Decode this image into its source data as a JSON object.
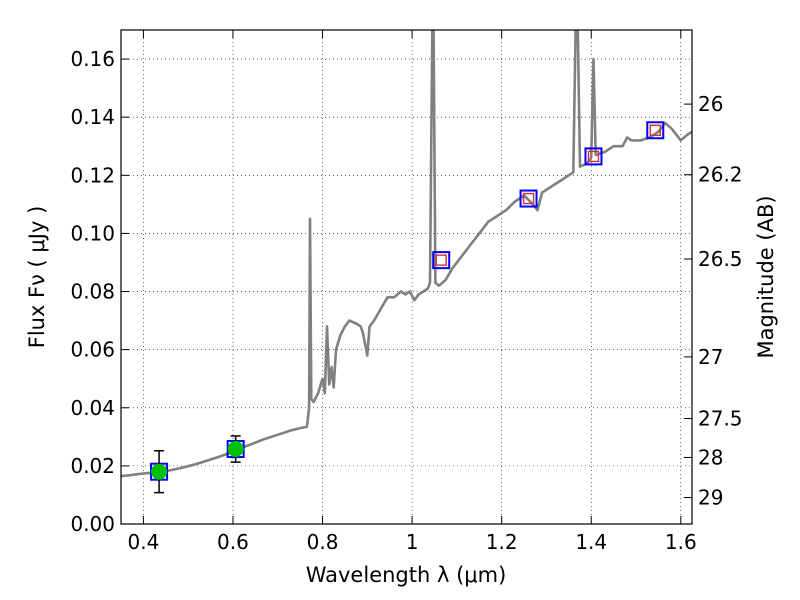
{
  "chart_data": {
    "type": "scatter",
    "xlabel": "Wavelength  λ (μm)",
    "ylabel": "Flux  Fν  ( μJy )",
    "y2label": "Magnitude (AB)",
    "xlim": [
      0.35,
      1.625
    ],
    "ylim": [
      0.0,
      0.17
    ],
    "grid": true,
    "grid_style": "dotted",
    "x_ticks": [
      0.4,
      0.6,
      0.8,
      1.0,
      1.2,
      1.4,
      1.6
    ],
    "x_tick_labels": [
      "0.4",
      "0.6",
      "0.8",
      "1",
      "1.2",
      "1.4",
      "1.6"
    ],
    "y_ticks": [
      0.0,
      0.02,
      0.04,
      0.06,
      0.08,
      0.1,
      0.12,
      0.14,
      0.16
    ],
    "y_tick_labels": [
      "0.00",
      "0.02",
      "0.04",
      "0.06",
      "0.08",
      "0.10",
      "0.12",
      "0.14",
      "0.16"
    ],
    "y2_ticks": [
      {
        "label": "26",
        "flux": 0.1445
      },
      {
        "label": "26.2",
        "flux": 0.1202
      },
      {
        "label": "26.5",
        "flux": 0.0912
      },
      {
        "label": "27",
        "flux": 0.0575
      },
      {
        "label": "27.5",
        "flux": 0.0363
      },
      {
        "label": "28",
        "flux": 0.0229
      },
      {
        "label": "29",
        "flux": 0.0091
      }
    ],
    "colors": {
      "spectrum": "#808080",
      "observed_fill": "#00c000",
      "model_box": "#0000ff",
      "model_inner": "#d03040",
      "errorbar": "#000000"
    },
    "series": [
      {
        "kind": "line",
        "points": [
          [
            0.35,
            0.0165
          ],
          [
            0.37,
            0.0168
          ],
          [
            0.39,
            0.0172
          ],
          [
            0.41,
            0.0175
          ],
          [
            0.43,
            0.0178
          ],
          [
            0.45,
            0.0182
          ],
          [
            0.47,
            0.0188
          ],
          [
            0.49,
            0.0195
          ],
          [
            0.51,
            0.0203
          ],
          [
            0.53,
            0.0212
          ],
          [
            0.55,
            0.0222
          ],
          [
            0.57,
            0.0232
          ],
          [
            0.59,
            0.0243
          ],
          [
            0.61,
            0.0256
          ],
          [
            0.63,
            0.0268
          ],
          [
            0.65,
            0.028
          ],
          [
            0.67,
            0.0292
          ],
          [
            0.69,
            0.0302
          ],
          [
            0.71,
            0.0312
          ],
          [
            0.73,
            0.0322
          ],
          [
            0.75,
            0.033
          ],
          [
            0.765,
            0.0335
          ],
          [
            0.77,
            0.04
          ],
          [
            0.772,
            0.105
          ],
          [
            0.775,
            0.043
          ],
          [
            0.78,
            0.042
          ],
          [
            0.79,
            0.045
          ],
          [
            0.8,
            0.05
          ],
          [
            0.805,
            0.045
          ],
          [
            0.81,
            0.068
          ],
          [
            0.815,
            0.048
          ],
          [
            0.82,
            0.054
          ],
          [
            0.825,
            0.047
          ],
          [
            0.83,
            0.06
          ],
          [
            0.84,
            0.065
          ],
          [
            0.85,
            0.068
          ],
          [
            0.86,
            0.07
          ],
          [
            0.875,
            0.069
          ],
          [
            0.885,
            0.068
          ],
          [
            0.89,
            0.066
          ],
          [
            0.9,
            0.058
          ],
          [
            0.905,
            0.068
          ],
          [
            0.915,
            0.07
          ],
          [
            0.93,
            0.074
          ],
          [
            0.945,
            0.078
          ],
          [
            0.96,
            0.078
          ],
          [
            0.975,
            0.08
          ],
          [
            0.985,
            0.079
          ],
          [
            0.995,
            0.08
          ],
          [
            1.005,
            0.077
          ],
          [
            1.015,
            0.079
          ],
          [
            1.025,
            0.08
          ],
          [
            1.035,
            0.081
          ],
          [
            1.04,
            0.083
          ],
          [
            1.045,
            0.17
          ],
          [
            1.048,
            0.17
          ],
          [
            1.052,
            0.083
          ],
          [
            1.06,
            0.082
          ],
          [
            1.075,
            0.084
          ],
          [
            1.09,
            0.088
          ],
          [
            1.11,
            0.092
          ],
          [
            1.13,
            0.096
          ],
          [
            1.15,
            0.1
          ],
          [
            1.17,
            0.104
          ],
          [
            1.19,
            0.106
          ],
          [
            1.21,
            0.108
          ],
          [
            1.23,
            0.111
          ],
          [
            1.25,
            0.113
          ],
          [
            1.27,
            0.11
          ],
          [
            1.28,
            0.108
          ],
          [
            1.29,
            0.114
          ],
          [
            1.31,
            0.116
          ],
          [
            1.33,
            0.118
          ],
          [
            1.35,
            0.12
          ],
          [
            1.36,
            0.121
          ],
          [
            1.365,
            0.17
          ],
          [
            1.37,
            0.17
          ],
          [
            1.375,
            0.123
          ],
          [
            1.39,
            0.124
          ],
          [
            1.4,
            0.126
          ],
          [
            1.405,
            0.16
          ],
          [
            1.41,
            0.127
          ],
          [
            1.43,
            0.128
          ],
          [
            1.45,
            0.13
          ],
          [
            1.47,
            0.13
          ],
          [
            1.48,
            0.133
          ],
          [
            1.49,
            0.132
          ],
          [
            1.51,
            0.132
          ],
          [
            1.53,
            0.133
          ],
          [
            1.55,
            0.135
          ],
          [
            1.565,
            0.138
          ],
          [
            1.58,
            0.136
          ],
          [
            1.6,
            0.132
          ],
          [
            1.615,
            0.134
          ],
          [
            1.625,
            0.135
          ]
        ]
      },
      {
        "kind": "observed",
        "points": [
          {
            "x": 0.435,
            "y": 0.018,
            "yerr": 0.0072
          },
          {
            "x": 0.606,
            "y": 0.0258,
            "yerr": 0.0045
          }
        ]
      },
      {
        "kind": "model",
        "points": [
          {
            "x": 0.435,
            "y": 0.018
          },
          {
            "x": 0.606,
            "y": 0.0258
          },
          {
            "x": 1.065,
            "y": 0.0908
          },
          {
            "x": 1.26,
            "y": 0.112
          },
          {
            "x": 1.405,
            "y": 0.1265
          },
          {
            "x": 1.543,
            "y": 0.1355
          }
        ]
      }
    ]
  }
}
